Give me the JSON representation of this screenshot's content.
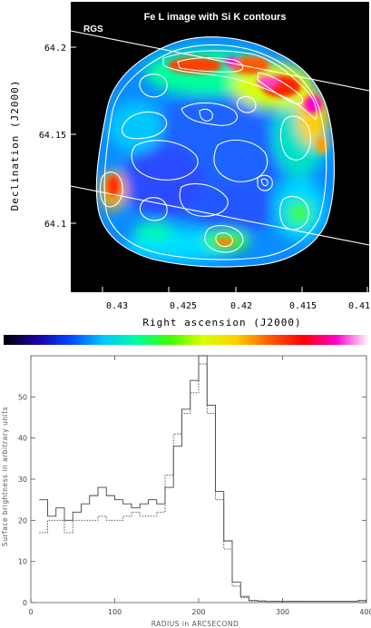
{
  "chart_data": [
    {
      "type": "heatmap",
      "title": "Fe L image with Si K contours",
      "xlabel": "Right ascension (J2000)",
      "ylabel": "Declination (J2000)",
      "xticks": [
        "0.43",
        "0.425",
        "0.42",
        "0.415",
        "0.41"
      ],
      "yticks": [
        "64.2",
        "64.15",
        "64.1"
      ],
      "annotations": [
        "RGS"
      ],
      "colormap": [
        "#000000",
        "#1a00a0",
        "#0047ff",
        "#00c8ff",
        "#00ff9c",
        "#3cff00",
        "#d8ff00",
        "#ffd000",
        "#ff5a00",
        "#ff0000",
        "#ff00c8",
        "#ffffff"
      ],
      "contour_color": "#ffffff"
    },
    {
      "type": "line",
      "title": "",
      "xlabel": "RADIUS in ARCSECOND",
      "ylabel": "Surface brightness in arbitrary units",
      "xlim": [
        0,
        400
      ],
      "ylim": [
        0,
        60
      ],
      "xticks": [
        0,
        100,
        200,
        300,
        400
      ],
      "yticks": [
        0,
        10,
        20,
        30,
        40,
        50
      ],
      "bin_edges": [
        10,
        20,
        30,
        40,
        50,
        60,
        70,
        80,
        90,
        100,
        110,
        120,
        130,
        140,
        150,
        160,
        170,
        180,
        190,
        200,
        210,
        220,
        230,
        240,
        250,
        260,
        270,
        280,
        290,
        300,
        310,
        320,
        330,
        340,
        350,
        360,
        370,
        380,
        390,
        400
      ],
      "series": [
        {
          "style": "solid",
          "values": [
            25,
            21,
            23,
            20,
            22,
            24,
            26,
            28,
            26,
            25,
            24,
            23,
            24,
            25,
            24,
            28,
            38,
            47,
            54,
            60,
            48,
            27,
            15,
            5,
            1.5,
            0.5,
            0.4,
            0.3,
            0.3,
            0.3,
            0.3,
            0.3,
            0.3,
            0.3,
            0.3,
            0.3,
            0.3,
            0.3,
            0.5
          ]
        },
        {
          "style": "dotted",
          "values": [
            17,
            20,
            20,
            17,
            20,
            20,
            20,
            21,
            20,
            20,
            21,
            22,
            21,
            21,
            22,
            31,
            41,
            46,
            51,
            58,
            46,
            25,
            13,
            4,
            1.2,
            0.4,
            0.3,
            0.3,
            0.3,
            0.3,
            0.3,
            0.3,
            0.3,
            0.3,
            0.3,
            0.3,
            0.3,
            0.3,
            0.4
          ]
        }
      ]
    }
  ]
}
